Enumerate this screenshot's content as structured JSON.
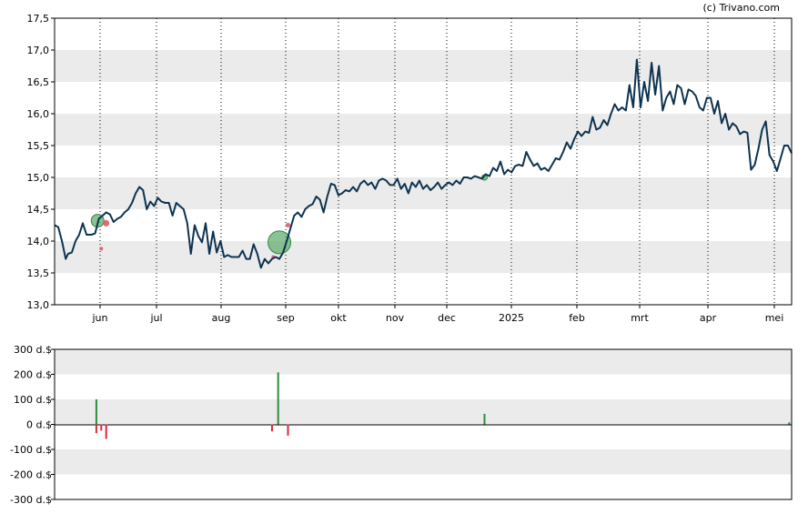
{
  "credit": "(c) Trivano.com",
  "colors": {
    "price_line": "#0d3350",
    "band": "#ebebeb",
    "buy": "#2e8b3d",
    "sell": "#d8283a",
    "bubble_buy": "#5aa86a",
    "bubble_sell": "#e05060"
  },
  "chart_data": [
    {
      "type": "line",
      "title": "",
      "xlabel": "",
      "ylabel": "",
      "ylim": [
        13.0,
        17.5
      ],
      "y_ticks": [
        "17,5",
        "17,0",
        "16,5",
        "16,0",
        "15,5",
        "15,0",
        "14,5",
        "14,0",
        "13,5",
        "13,0"
      ],
      "x_ticks": [
        "jun",
        "jul",
        "aug",
        "sep",
        "okt",
        "nov",
        "dec",
        "2025",
        "feb",
        "mrt",
        "apr",
        "mei"
      ],
      "grid": "horizontal bands, dotted vertical month lines",
      "series": [
        {
          "name": "",
          "points": [
            [
              0,
              14.25
            ],
            [
              3,
              14.22
            ],
            [
              6,
              14.0
            ],
            [
              9,
              13.72
            ],
            [
              11,
              13.8
            ],
            [
              14,
              13.82
            ],
            [
              17,
              14.0
            ],
            [
              20,
              14.1
            ],
            [
              23,
              14.28
            ],
            [
              26,
              14.1
            ],
            [
              30,
              14.1
            ],
            [
              33,
              14.12
            ],
            [
              36,
              14.35
            ],
            [
              39,
              14.4
            ],
            [
              42,
              14.45
            ],
            [
              45,
              14.42
            ],
            [
              48,
              14.3
            ],
            [
              51,
              14.35
            ],
            [
              54,
              14.38
            ],
            [
              57,
              14.45
            ],
            [
              60,
              14.5
            ],
            [
              63,
              14.6
            ],
            [
              66,
              14.75
            ],
            [
              69,
              14.85
            ],
            [
              72,
              14.8
            ],
            [
              75,
              14.5
            ],
            [
              78,
              14.62
            ],
            [
              81,
              14.55
            ],
            [
              84,
              14.68
            ],
            [
              87,
              14.62
            ],
            [
              90,
              14.6
            ],
            [
              93,
              14.6
            ],
            [
              96,
              14.4
            ],
            [
              99,
              14.6
            ],
            [
              102,
              14.55
            ],
            [
              105,
              14.5
            ],
            [
              108,
              14.28
            ],
            [
              111,
              13.8
            ],
            [
              114,
              14.25
            ],
            [
              117,
              14.08
            ],
            [
              120,
              13.98
            ],
            [
              123,
              14.28
            ],
            [
              126,
              13.8
            ],
            [
              129,
              14.15
            ],
            [
              132,
              13.82
            ],
            [
              135,
              14.0
            ],
            [
              138,
              13.75
            ],
            [
              141,
              13.78
            ],
            [
              144,
              13.75
            ],
            [
              147,
              13.75
            ],
            [
              150,
              13.75
            ],
            [
              153,
              13.85
            ],
            [
              156,
              13.72
            ],
            [
              159,
              13.72
            ],
            [
              162,
              13.95
            ],
            [
              165,
              13.8
            ],
            [
              168,
              13.58
            ],
            [
              171,
              13.72
            ],
            [
              174,
              13.65
            ],
            [
              177,
              13.72
            ],
            [
              180,
              13.75
            ],
            [
              183,
              13.72
            ],
            [
              186,
              13.82
            ],
            [
              189,
              14.0
            ],
            [
              192,
              14.2
            ],
            [
              195,
              14.4
            ],
            [
              198,
              14.45
            ],
            [
              201,
              14.38
            ],
            [
              204,
              14.5
            ],
            [
              207,
              14.55
            ],
            [
              210,
              14.58
            ],
            [
              213,
              14.7
            ],
            [
              216,
              14.65
            ],
            [
              219,
              14.45
            ],
            [
              222,
              14.7
            ],
            [
              225,
              14.9
            ],
            [
              228,
              14.88
            ],
            [
              231,
              14.72
            ],
            [
              234,
              14.75
            ],
            [
              237,
              14.8
            ],
            [
              240,
              14.78
            ],
            [
              243,
              14.85
            ],
            [
              246,
              14.78
            ],
            [
              249,
              14.9
            ],
            [
              252,
              14.95
            ],
            [
              255,
              14.88
            ],
            [
              258,
              14.92
            ],
            [
              261,
              14.82
            ],
            [
              264,
              14.95
            ],
            [
              267,
              14.98
            ],
            [
              270,
              14.95
            ],
            [
              273,
              14.88
            ],
            [
              276,
              14.88
            ],
            [
              279,
              14.98
            ],
            [
              282,
              14.82
            ],
            [
              285,
              14.9
            ],
            [
              288,
              14.75
            ],
            [
              291,
              14.92
            ],
            [
              294,
              14.85
            ],
            [
              297,
              14.95
            ],
            [
              300,
              14.82
            ],
            [
              303,
              14.88
            ],
            [
              306,
              14.8
            ],
            [
              309,
              14.85
            ],
            [
              312,
              14.92
            ],
            [
              315,
              14.82
            ],
            [
              318,
              14.88
            ],
            [
              321,
              14.92
            ],
            [
              324,
              14.88
            ],
            [
              327,
              14.95
            ],
            [
              330,
              14.9
            ],
            [
              333,
              15.0
            ],
            [
              336,
              15.0
            ],
            [
              339,
              14.98
            ],
            [
              342,
              15.02
            ],
            [
              345,
              15.0
            ],
            [
              348,
              14.98
            ],
            [
              351,
              15.05
            ],
            [
              354,
              15.02
            ],
            [
              357,
              15.15
            ],
            [
              360,
              15.1
            ],
            [
              363,
              15.25
            ],
            [
              366,
              15.05
            ],
            [
              369,
              15.12
            ],
            [
              372,
              15.08
            ],
            [
              375,
              15.18
            ],
            [
              378,
              15.2
            ],
            [
              381,
              15.18
            ],
            [
              384,
              15.4
            ],
            [
              387,
              15.28
            ],
            [
              390,
              15.18
            ],
            [
              393,
              15.22
            ],
            [
              396,
              15.12
            ],
            [
              399,
              15.15
            ],
            [
              402,
              15.1
            ],
            [
              405,
              15.2
            ],
            [
              408,
              15.3
            ],
            [
              411,
              15.28
            ],
            [
              414,
              15.4
            ],
            [
              417,
              15.55
            ],
            [
              420,
              15.45
            ],
            [
              423,
              15.6
            ],
            [
              426,
              15.72
            ],
            [
              429,
              15.65
            ],
            [
              432,
              15.72
            ],
            [
              435,
              15.7
            ],
            [
              438,
              15.95
            ],
            [
              441,
              15.75
            ],
            [
              444,
              15.78
            ],
            [
              447,
              15.9
            ],
            [
              450,
              15.82
            ],
            [
              453,
              16.0
            ],
            [
              456,
              16.15
            ],
            [
              459,
              16.05
            ],
            [
              462,
              16.1
            ],
            [
              465,
              16.05
            ],
            [
              468,
              16.45
            ],
            [
              471,
              16.1
            ],
            [
              474,
              16.85
            ],
            [
              477,
              16.1
            ],
            [
              480,
              16.5
            ],
            [
              483,
              16.2
            ],
            [
              486,
              16.8
            ],
            [
              489,
              16.3
            ],
            [
              492,
              16.75
            ],
            [
              495,
              16.05
            ],
            [
              498,
              16.25
            ],
            [
              501,
              16.35
            ],
            [
              504,
              16.15
            ],
            [
              507,
              16.45
            ],
            [
              510,
              16.4
            ],
            [
              513,
              16.15
            ],
            [
              516,
              16.38
            ],
            [
              519,
              16.35
            ],
            [
              522,
              16.28
            ],
            [
              525,
              16.1
            ],
            [
              528,
              16.05
            ],
            [
              531,
              16.25
            ],
            [
              534,
              16.25
            ],
            [
              537,
              16.0
            ],
            [
              540,
              16.2
            ],
            [
              543,
              15.85
            ],
            [
              546,
              16.0
            ],
            [
              549,
              15.75
            ],
            [
              552,
              15.85
            ],
            [
              555,
              15.8
            ],
            [
              558,
              15.68
            ],
            [
              561,
              15.72
            ],
            [
              564,
              15.7
            ],
            [
              567,
              15.12
            ],
            [
              570,
              15.2
            ],
            [
              573,
              15.45
            ],
            [
              576,
              15.75
            ],
            [
              579,
              15.88
            ],
            [
              582,
              15.35
            ],
            [
              585,
              15.25
            ],
            [
              588,
              15.1
            ],
            [
              591,
              15.3
            ],
            [
              594,
              15.5
            ],
            [
              597,
              15.5
            ],
            [
              600,
              15.38
            ]
          ]
        }
      ],
      "buy_markers": [
        {
          "x": 35,
          "y": 14.32,
          "size": 12
        },
        {
          "x": 183,
          "y": 13.98,
          "size": 23
        },
        {
          "x": 350,
          "y": 15.0,
          "size": 4
        }
      ],
      "sell_markers": [
        {
          "x": 38,
          "y": 13.88,
          "size": 3
        },
        {
          "x": 42,
          "y": 14.28,
          "size": 6
        },
        {
          "x": 178,
          "y": 13.75,
          "size": 3
        },
        {
          "x": 190,
          "y": 14.25,
          "size": 4
        }
      ]
    },
    {
      "type": "bar",
      "title": "",
      "xlabel": "",
      "ylabel": "",
      "ylim": [
        -300,
        300
      ],
      "y_ticks": [
        "300 d.$",
        "200 d.$",
        "100 d.$",
        "0 d.$",
        "-100 d.$",
        "-200 d.$",
        "-300 d.$"
      ],
      "series": [
        {
          "name": "",
          "bars": [
            {
              "x": 34,
              "value": 100
            },
            {
              "x": 34,
              "value": -35
            },
            {
              "x": 38,
              "value": -25
            },
            {
              "x": 42,
              "value": -58
            },
            {
              "x": 177,
              "value": -28
            },
            {
              "x": 182,
              "value": 208
            },
            {
              "x": 190,
              "value": -45
            },
            {
              "x": 350,
              "value": 42
            },
            {
              "x": 598,
              "value": 8
            }
          ]
        }
      ]
    }
  ]
}
